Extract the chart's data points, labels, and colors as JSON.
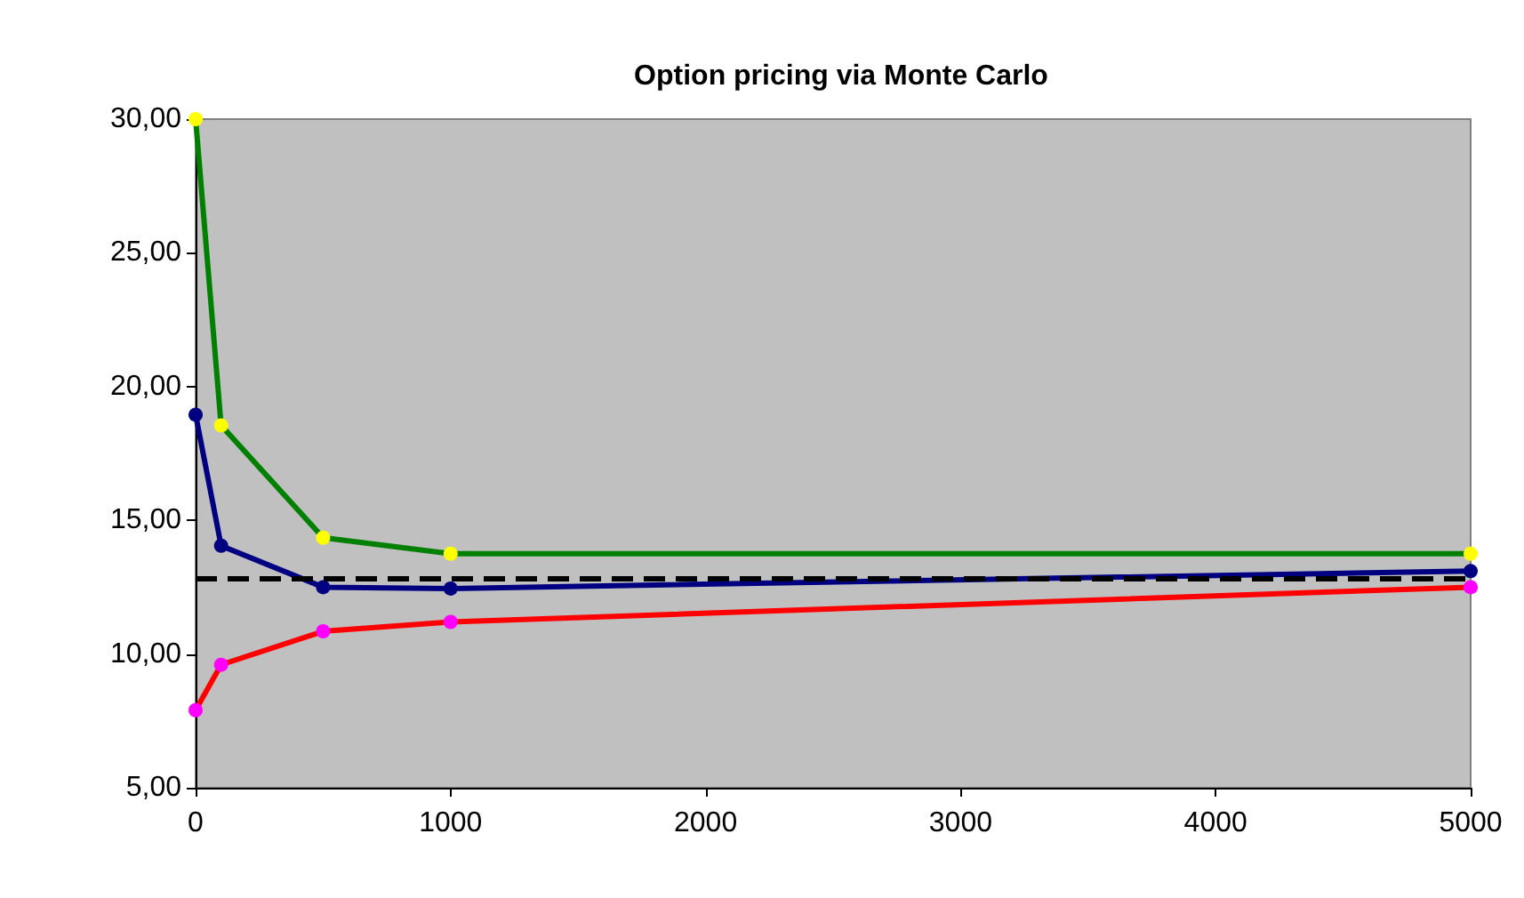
{
  "chart_data": {
    "type": "line",
    "title": "Option pricing via Monte Carlo",
    "x": [
      0,
      100,
      500,
      1000,
      5000
    ],
    "series": [
      {
        "color": "#008000",
        "colors": [
          "#ffff00",
          "#ffff00",
          "#ffff00",
          "#ffff00",
          "#ffff00"
        ],
        "values": [
          30.0,
          18.55,
          14.35,
          13.75,
          13.75
        ]
      },
      {
        "color": "#000080",
        "colors": [
          "#000080",
          "#000080",
          "#000080",
          "#000080",
          "#000080"
        ],
        "values": [
          18.95,
          14.05,
          12.5,
          12.45,
          13.1
        ]
      },
      {
        "color": "#ff0000",
        "colors": [
          "#ff00ff",
          "#ff00ff",
          "#ff00ff",
          "#ff00ff",
          "#ff00ff"
        ],
        "values": [
          7.9,
          9.6,
          10.85,
          11.2,
          12.5
        ]
      }
    ],
    "xlim": [
      0,
      5000
    ],
    "xticks": [
      0,
      1000,
      2000,
      3000,
      4000,
      5000
    ],
    "ylim": [
      5,
      30
    ],
    "yticks": [
      {
        "value": 5,
        "label": "5,00"
      },
      {
        "value": 10,
        "label": "10,00"
      },
      {
        "value": 15,
        "label": "15,00"
      },
      {
        "value": 20,
        "label": "20,00"
      },
      {
        "value": 25,
        "label": "25,00"
      },
      {
        "value": 30,
        "label": "30,00"
      }
    ],
    "ref_lines": [
      {
        "axis": "y",
        "value": 12.8,
        "color": "#000000",
        "line_style": "dashed"
      }
    ],
    "marker": "circle",
    "line_style": "solid",
    "grid": false
  }
}
